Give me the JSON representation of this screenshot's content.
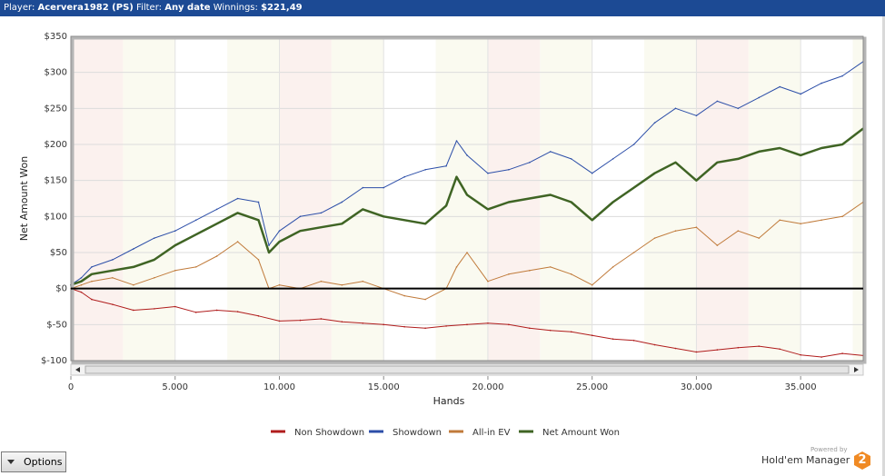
{
  "header": {
    "player_label": "Player:",
    "player_value": "Acervera1982 (PS)",
    "filter_label": "Filter:",
    "filter_value": "Any date",
    "winnings_label": "Winnings:",
    "winnings_value": "$221,49"
  },
  "footer": {
    "options_label": "Options",
    "powered_by": "Powered by",
    "brand": "Hold'em Manager",
    "brand_logo_text": "2"
  },
  "chart_data": {
    "type": "line",
    "xlabel": "Hands",
    "ylabel": "Net Amount Won",
    "xlim": [
      0,
      38000
    ],
    "ylim": [
      -100,
      350
    ],
    "x_ticks": [
      0,
      5000,
      10000,
      15000,
      20000,
      25000,
      30000,
      35000
    ],
    "x_tick_labels": [
      "0",
      "5.000",
      "10.000",
      "15.000",
      "20.000",
      "25.000",
      "30.000",
      "35.000"
    ],
    "y_ticks": [
      -100,
      -50,
      0,
      50,
      100,
      150,
      200,
      250,
      300,
      350
    ],
    "y_tick_labels": [
      "$-100",
      "$-50",
      "$0",
      "$50",
      "$100",
      "$150",
      "$200",
      "$250",
      "$300",
      "$350"
    ],
    "grid": true,
    "legend_position": "bottom",
    "colors": {
      "non_showdown": "#b01c1c",
      "showdown": "#2c4ea8",
      "allin_ev": "#c07a3a",
      "net": "#3f6424",
      "zero_line": "#000000",
      "band_a": "#fbf1ee",
      "band_b": "#fafaf0"
    },
    "series": [
      {
        "name": "Non Showdown",
        "x": [
          0,
          500,
          1000,
          2000,
          3000,
          4000,
          5000,
          6000,
          7000,
          8000,
          9000,
          10000,
          11000,
          12000,
          13000,
          14000,
          15000,
          16000,
          17000,
          18000,
          19000,
          20000,
          21000,
          22000,
          23000,
          24000,
          25000,
          26000,
          27000,
          28000,
          29000,
          30000,
          31000,
          32000,
          33000,
          34000,
          35000,
          36000,
          37000,
          38000
        ],
        "values": [
          0,
          -5,
          -15,
          -22,
          -30,
          -28,
          -25,
          -33,
          -30,
          -32,
          -38,
          -45,
          -44,
          -42,
          -46,
          -48,
          -50,
          -53,
          -55,
          -52,
          -50,
          -48,
          -50,
          -55,
          -58,
          -60,
          -65,
          -70,
          -72,
          -78,
          -83,
          -88,
          -85,
          -82,
          -80,
          -84,
          -92,
          -95,
          -90,
          -93
        ]
      },
      {
        "name": "Showdown",
        "x": [
          0,
          500,
          1000,
          2000,
          3000,
          4000,
          5000,
          6000,
          7000,
          8000,
          9000,
          9500,
          10000,
          11000,
          12000,
          13000,
          14000,
          15000,
          16000,
          17000,
          18000,
          18500,
          19000,
          20000,
          21000,
          22000,
          23000,
          24000,
          25000,
          26000,
          27000,
          28000,
          29000,
          30000,
          31000,
          32000,
          33000,
          34000,
          35000,
          36000,
          37000,
          38000
        ],
        "values": [
          5,
          15,
          30,
          40,
          55,
          70,
          80,
          95,
          110,
          125,
          120,
          60,
          80,
          100,
          105,
          120,
          140,
          140,
          155,
          165,
          170,
          205,
          185,
          160,
          165,
          175,
          190,
          180,
          160,
          180,
          200,
          230,
          250,
          240,
          260,
          250,
          265,
          280,
          270,
          285,
          295,
          315
        ]
      },
      {
        "name": "All-in EV",
        "x": [
          0,
          500,
          1000,
          2000,
          3000,
          4000,
          5000,
          6000,
          7000,
          8000,
          9000,
          9500,
          10000,
          11000,
          12000,
          13000,
          14000,
          15000,
          16000,
          17000,
          18000,
          18500,
          19000,
          20000,
          21000,
          22000,
          23000,
          24000,
          25000,
          26000,
          27000,
          28000,
          29000,
          30000,
          31000,
          32000,
          33000,
          34000,
          35000,
          36000,
          37000,
          38000
        ],
        "values": [
          0,
          5,
          10,
          15,
          5,
          15,
          25,
          30,
          45,
          65,
          40,
          0,
          5,
          0,
          10,
          5,
          10,
          0,
          -10,
          -15,
          0,
          30,
          50,
          10,
          20,
          25,
          30,
          20,
          5,
          30,
          50,
          70,
          80,
          85,
          60,
          80,
          70,
          95,
          90,
          95,
          100,
          120
        ]
      },
      {
        "name": "Net Amount Won",
        "x": [
          0,
          500,
          1000,
          2000,
          3000,
          4000,
          5000,
          6000,
          7000,
          8000,
          9000,
          9500,
          10000,
          11000,
          12000,
          13000,
          14000,
          15000,
          16000,
          17000,
          18000,
          18500,
          19000,
          20000,
          21000,
          22000,
          23000,
          24000,
          25000,
          26000,
          27000,
          28000,
          29000,
          30000,
          31000,
          32000,
          33000,
          34000,
          35000,
          36000,
          37000,
          38000
        ],
        "values": [
          5,
          10,
          20,
          25,
          30,
          40,
          60,
          75,
          90,
          105,
          95,
          50,
          65,
          80,
          85,
          90,
          110,
          100,
          95,
          90,
          115,
          155,
          130,
          110,
          120,
          125,
          130,
          120,
          95,
          120,
          140,
          160,
          175,
          150,
          175,
          180,
          190,
          195,
          185,
          195,
          200,
          222
        ]
      }
    ]
  }
}
